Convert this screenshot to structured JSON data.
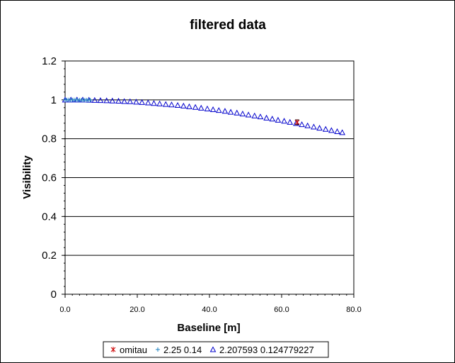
{
  "chart_data": {
    "type": "scatter",
    "title": "filtered data",
    "xlabel": "Baseline [m]",
    "ylabel": "Visibility",
    "xlim": [
      0,
      80
    ],
    "ylim": [
      0,
      1.2
    ],
    "xticks": [
      "0.0",
      "20.0",
      "40.0",
      "60.0",
      "80.0"
    ],
    "yticks": [
      "0",
      "0.2",
      "0.4",
      "0.6",
      "0.8",
      "1",
      "1.2"
    ],
    "grid": "horizontal major gridlines",
    "legend_position": "bottom",
    "series": [
      {
        "name": "omitau",
        "marker": "star",
        "color": "#cc0000",
        "x": [
          64.3
        ],
        "y": [
          0.885
        ],
        "yerr": [
          0.012
        ]
      },
      {
        "name": "2.25 0.14",
        "marker": "plus",
        "color": "#1a7fc0",
        "x": [
          0.0,
          0.5,
          1.0,
          1.5,
          2.0,
          2.5,
          3.0,
          3.5,
          4.0,
          4.5,
          5.0,
          5.5,
          6.0,
          6.5,
          7.0
        ],
        "y": [
          1.0,
          1.0,
          1.0,
          1.0,
          1.0,
          1.0,
          1.0,
          0.999,
          0.999,
          0.999,
          0.999,
          0.999,
          0.999,
          0.999,
          0.999
        ]
      },
      {
        "name": "2.207593 0.124779227",
        "marker": "triangle",
        "color": "#0000cc",
        "x": [
          0.0,
          1.6,
          3.3,
          4.9,
          6.6,
          8.2,
          9.8,
          11.5,
          13.1,
          14.8,
          16.4,
          18.0,
          19.7,
          21.3,
          23.0,
          24.6,
          26.2,
          27.9,
          29.5,
          31.2,
          32.8,
          34.4,
          36.1,
          37.7,
          39.4,
          41.0,
          42.6,
          44.3,
          45.9,
          47.6,
          49.2,
          50.8,
          52.5,
          54.1,
          55.8,
          57.4,
          59.0,
          60.7,
          62.3,
          64.0,
          65.6,
          67.2,
          68.9,
          70.5,
          72.2,
          73.8,
          75.4,
          76.8
        ],
        "y": [
          1.0,
          1.0,
          1.0,
          1.0,
          0.999,
          0.998,
          0.997,
          0.996,
          0.995,
          0.994,
          0.992,
          0.991,
          0.989,
          0.987,
          0.985,
          0.982,
          0.98,
          0.977,
          0.975,
          0.972,
          0.969,
          0.965,
          0.962,
          0.958,
          0.954,
          0.95,
          0.946,
          0.942,
          0.937,
          0.933,
          0.928,
          0.923,
          0.918,
          0.913,
          0.907,
          0.902,
          0.896,
          0.891,
          0.885,
          0.879,
          0.873,
          0.867,
          0.861,
          0.855,
          0.849,
          0.843,
          0.837,
          0.832
        ]
      }
    ]
  }
}
